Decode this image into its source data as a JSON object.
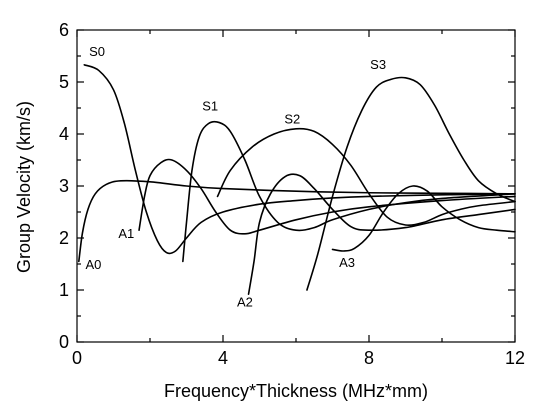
{
  "chart_data": {
    "type": "line",
    "title": "",
    "xlabel": "Frequency*Thickness (MHz*mm)",
    "ylabel": "Group Velocity (km/s)",
    "xlim": [
      0,
      12
    ],
    "ylim": [
      0,
      6
    ],
    "xticks": [
      0,
      4,
      8,
      12
    ],
    "yticks": [
      0,
      1,
      2,
      3,
      4,
      5,
      6
    ],
    "grid": false,
    "legend": "none",
    "series": [
      {
        "name": "A0",
        "x": [
          0.05,
          0.15,
          0.3,
          0.5,
          0.8,
          1.2,
          2.0,
          3.0,
          4.0,
          6.0,
          8.0,
          10.0,
          12.0
        ],
        "y": [
          1.55,
          2.1,
          2.55,
          2.85,
          3.03,
          3.1,
          3.08,
          3.0,
          2.95,
          2.9,
          2.87,
          2.86,
          2.85
        ]
      },
      {
        "name": "S0",
        "x": [
          0.2,
          0.6,
          1.0,
          1.3,
          1.6,
          1.9,
          2.2,
          2.45,
          2.7,
          3.0,
          3.4,
          4.0,
          5.0,
          6.0,
          7.0,
          8.0,
          10.0,
          12.0
        ],
        "y": [
          5.33,
          5.22,
          4.85,
          4.2,
          3.3,
          2.5,
          1.95,
          1.72,
          1.75,
          2.0,
          2.3,
          2.5,
          2.65,
          2.72,
          2.77,
          2.8,
          2.83,
          2.85
        ]
      },
      {
        "name": "A1",
        "x": [
          1.7,
          1.85,
          2.0,
          2.3,
          2.6,
          3.0,
          3.4,
          3.8,
          4.2,
          4.6,
          5.0,
          6.0,
          7.0,
          8.0,
          10.0,
          12.0
        ],
        "y": [
          2.15,
          2.8,
          3.2,
          3.45,
          3.5,
          3.3,
          2.95,
          2.5,
          2.15,
          2.08,
          2.15,
          2.35,
          2.5,
          2.6,
          2.72,
          2.8
        ]
      },
      {
        "name": "S1",
        "x": [
          2.9,
          3.0,
          3.15,
          3.35,
          3.6,
          3.9,
          4.2,
          4.6,
          5.0,
          5.5,
          6.0,
          6.5,
          7.0,
          8.0,
          9.0,
          10.0,
          12.0
        ],
        "y": [
          1.55,
          2.3,
          3.3,
          3.95,
          4.2,
          4.22,
          4.05,
          3.5,
          2.8,
          2.3,
          2.15,
          2.2,
          2.35,
          2.55,
          2.68,
          2.76,
          2.85
        ]
      },
      {
        "name": "A2",
        "x": [
          4.7,
          4.85,
          5.0,
          5.3,
          5.7,
          6.1,
          6.5,
          7.0,
          7.5,
          8.0,
          9.0,
          10.0,
          11.0,
          12.0
        ],
        "y": [
          0.92,
          1.55,
          2.3,
          2.85,
          3.18,
          3.2,
          2.95,
          2.55,
          2.22,
          2.15,
          2.2,
          2.35,
          2.45,
          2.55
        ]
      },
      {
        "name": "S2",
        "x": [
          3.85,
          4.2,
          4.8,
          5.4,
          6.0,
          6.5,
          7.0,
          7.5,
          8.0,
          8.5,
          9.0,
          9.5,
          10.0,
          10.5,
          11.0,
          12.0
        ],
        "y": [
          2.8,
          3.3,
          3.75,
          4.0,
          4.1,
          4.05,
          3.8,
          3.4,
          2.85,
          2.4,
          2.25,
          2.3,
          2.45,
          2.55,
          2.62,
          2.7
        ]
      },
      {
        "name": "S3",
        "x": [
          6.3,
          6.6,
          7.0,
          7.4,
          7.8,
          8.2,
          8.6,
          9.0,
          9.4,
          9.8,
          10.2,
          10.6,
          11.0,
          11.5,
          12.0
        ],
        "y": [
          1.0,
          1.7,
          2.8,
          3.75,
          4.45,
          4.9,
          5.05,
          5.08,
          4.95,
          4.55,
          4.0,
          3.5,
          3.1,
          2.85,
          2.7
        ]
      },
      {
        "name": "A3",
        "x": [
          7.0,
          7.3,
          7.6,
          8.0,
          8.4,
          8.8,
          9.2,
          9.6,
          10.0,
          10.5,
          11.0,
          11.5,
          12.0
        ],
        "y": [
          1.78,
          1.75,
          1.8,
          2.05,
          2.5,
          2.85,
          3.0,
          2.9,
          2.6,
          2.35,
          2.2,
          2.15,
          2.12
        ]
      }
    ],
    "annotations": [
      {
        "text": "S0",
        "x": 0.55,
        "y": 5.5
      },
      {
        "text": "S1",
        "x": 3.65,
        "y": 4.45
      },
      {
        "text": "S2",
        "x": 5.9,
        "y": 4.2
      },
      {
        "text": "S3",
        "x": 8.25,
        "y": 5.25
      },
      {
        "text": "A0",
        "x": 0.45,
        "y": 1.4
      },
      {
        "text": "A1",
        "x": 1.35,
        "y": 2.0
      },
      {
        "text": "A2",
        "x": 4.6,
        "y": 0.68
      },
      {
        "text": "A3",
        "x": 7.4,
        "y": 1.44
      }
    ]
  }
}
